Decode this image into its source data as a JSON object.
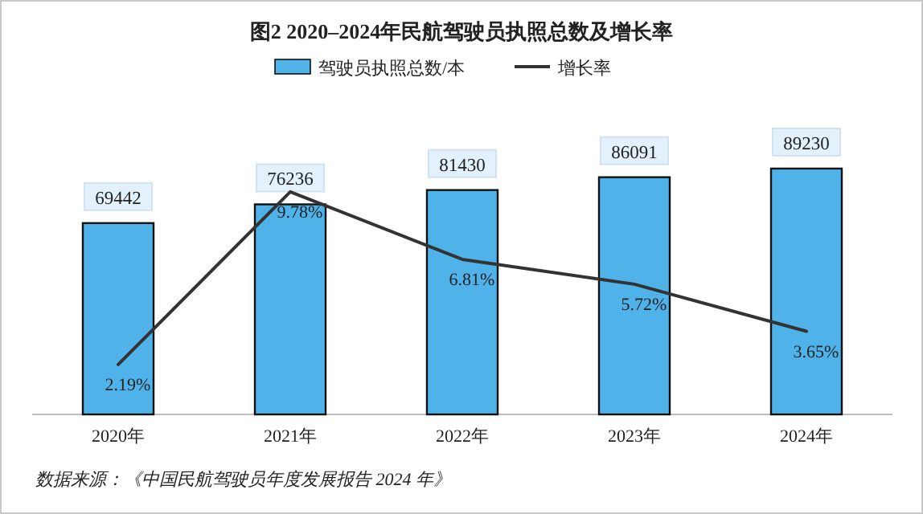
{
  "chart_data": {
    "type": "bar",
    "title": "图2  2020–2024年民航驾驶员执照总数及增长率",
    "categories": [
      "2020年",
      "2021年",
      "2022年",
      "2023年",
      "2024年"
    ],
    "series": [
      {
        "name": "驾驶员执照总数/本",
        "color": "#4fb3ea",
        "values": [
          69442,
          76236,
          81430,
          86091,
          89230
        ]
      },
      {
        "name": "增长率",
        "type": "line",
        "axis": "y2",
        "color": "#333333",
        "values": [
          2.19,
          9.78,
          6.81,
          5.72,
          3.65
        ],
        "value_labels": [
          "2.19%",
          "9.78%",
          "6.81%",
          "5.72%",
          "3.65%"
        ]
      }
    ],
    "data_labels": true,
    "legend": "top",
    "marker": "none",
    "line_style": "solid",
    "annotations": [
      "数据来源：《中国民航驾驶员年度发展报告 2024 年》"
    ]
  }
}
